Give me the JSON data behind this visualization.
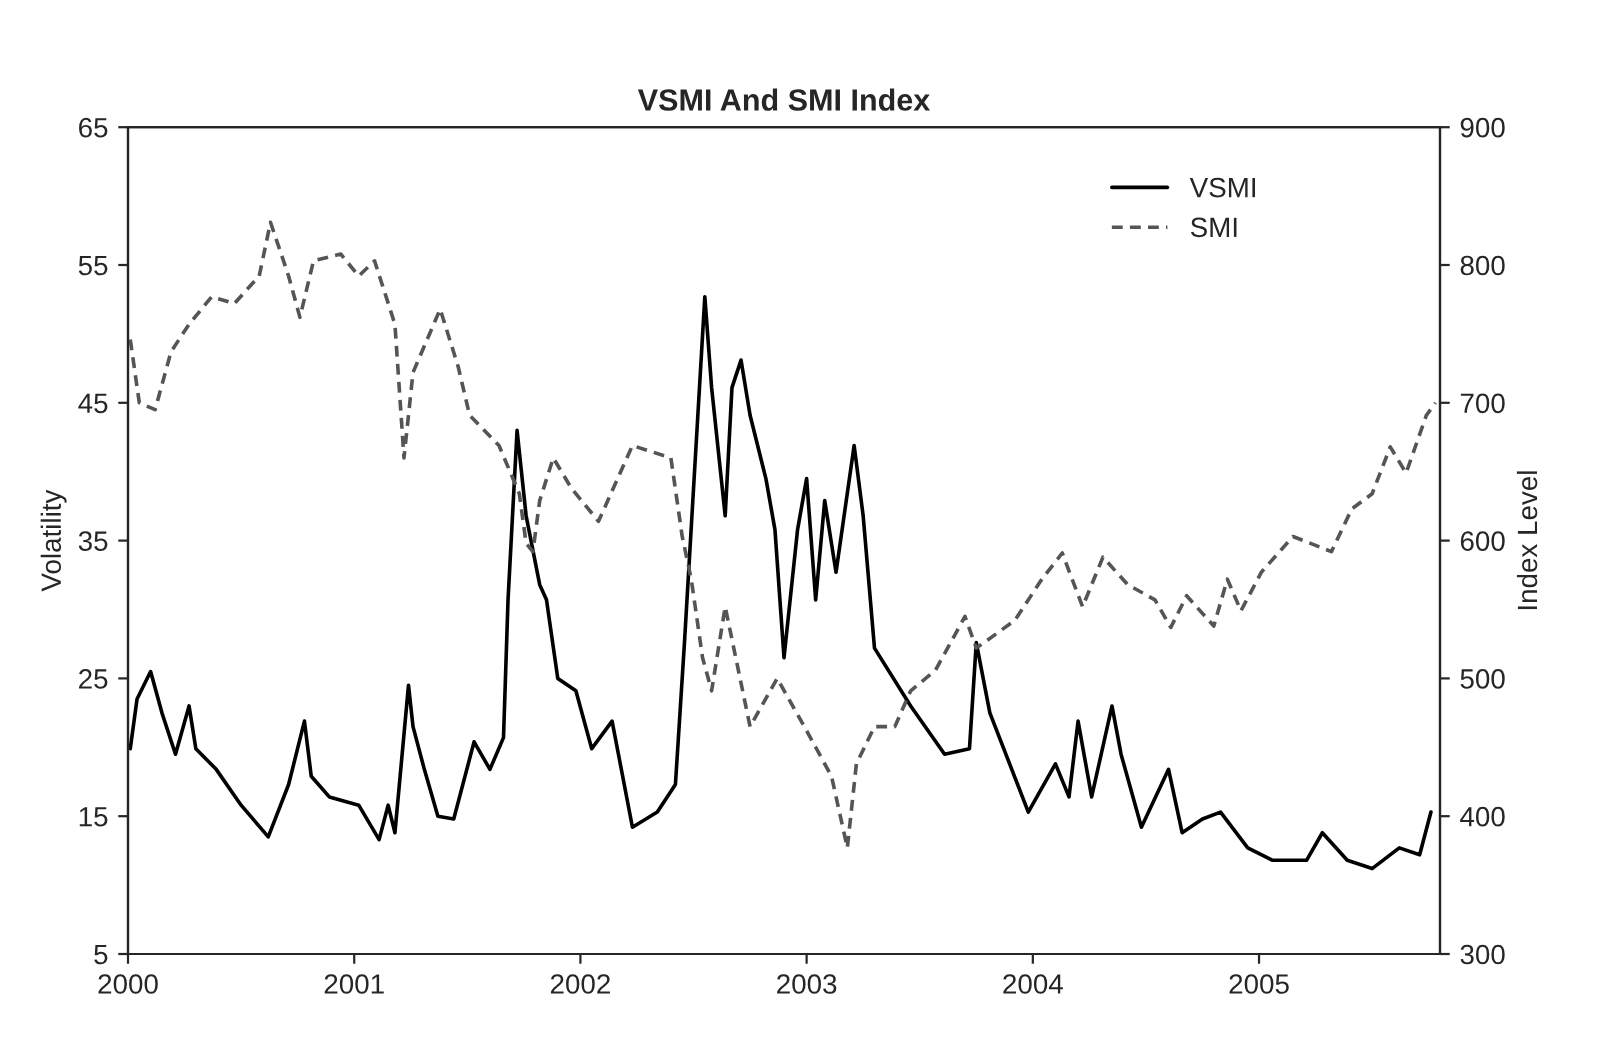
{
  "chart_data": {
    "type": "line",
    "title": "VSMI And SMI Index",
    "ylabel": "Volatility",
    "y2label": "Index Level",
    "xlim": [
      2000,
      2005.8
    ],
    "xticks": [
      2000,
      2001,
      2002,
      2003,
      2004,
      2005
    ],
    "ylim": [
      5,
      65
    ],
    "yticks": [
      5,
      15,
      25,
      35,
      45,
      55,
      65
    ],
    "y2lim": [
      300,
      900
    ],
    "y2ticks": [
      300,
      400,
      500,
      600,
      700,
      800,
      900
    ],
    "grid": false,
    "legend": "top right",
    "series": [
      {
        "name": "VSMI",
        "color": "#000000",
        "line_style": "solid",
        "x": [
          2000.01,
          2000.04,
          2000.1,
          2000.15,
          2000.21,
          2000.27,
          2000.3,
          2000.39,
          2000.5,
          2000.62,
          2000.71,
          2000.78,
          2000.81,
          2000.89,
          2001.02,
          2001.11,
          2001.15,
          2001.18,
          2001.24,
          2001.26,
          2001.31,
          2001.37,
          2001.44,
          2001.53,
          2001.6,
          2001.66,
          2001.68,
          2001.72,
          2001.76,
          2001.82,
          2001.85,
          2001.9,
          2001.98,
          2002.05,
          2002.14,
          2002.23,
          2002.34,
          2002.42,
          2002.46,
          2002.55,
          2002.58,
          2002.64,
          2002.67,
          2002.71,
          2002.75,
          2002.82,
          2002.86,
          2002.9,
          2002.96,
          2003.0,
          2003.04,
          2003.08,
          2003.13,
          2003.21,
          2003.25,
          2003.3,
          2003.46,
          2003.61,
          2003.72,
          2003.75,
          2003.81,
          2003.98,
          2004.1,
          2004.16,
          2004.2,
          2004.26,
          2004.35,
          2004.39,
          2004.48,
          2004.6,
          2004.66,
          2004.75,
          2004.83,
          2004.95,
          2005.06,
          2005.21,
          2005.28,
          2005.39,
          2005.5,
          2005.62,
          2005.71,
          2005.76
        ],
        "values": [
          19.9,
          23.5,
          25.5,
          22.5,
          19.5,
          23,
          19.9,
          18.4,
          15.8,
          13.5,
          17.3,
          21.9,
          17.9,
          16.4,
          15.8,
          13.3,
          15.8,
          13.8,
          24.5,
          21.5,
          18.4,
          15,
          14.8,
          20.4,
          18.4,
          20.7,
          30.7,
          43,
          36.8,
          31.8,
          30.7,
          25,
          24.1,
          19.9,
          21.9,
          14.2,
          15.3,
          17.3,
          27.6,
          52.7,
          46.1,
          36.8,
          46.1,
          48.1,
          44.1,
          39.5,
          35.8,
          26.5,
          35.8,
          39.5,
          30.7,
          37.9,
          32.7,
          41.9,
          36.8,
          27.2,
          23,
          19.5,
          19.9,
          27.6,
          22.5,
          15.3,
          18.8,
          16.4,
          21.9,
          16.4,
          23,
          19.5,
          14.2,
          18.4,
          13.8,
          14.8,
          15.3,
          12.7,
          11.8,
          11.8,
          13.8,
          11.8,
          11.2,
          12.7,
          12.2,
          15.3
        ]
      },
      {
        "name": "SMI",
        "color": "#555555",
        "line_style": "dashed",
        "axis": "y2",
        "x": [
          2000.01,
          2000.05,
          2000.12,
          2000.19,
          2000.27,
          2000.37,
          2000.47,
          2000.58,
          2000.63,
          2000.71,
          2000.76,
          2000.82,
          2000.94,
          2001.02,
          2001.09,
          2001.18,
          2001.22,
          2001.26,
          2001.38,
          2001.46,
          2001.51,
          2001.64,
          2001.73,
          2001.76,
          2001.79,
          2001.82,
          2001.88,
          2001.96,
          2002.08,
          2002.23,
          2002.4,
          2002.45,
          2002.49,
          2002.54,
          2002.58,
          2002.64,
          2002.75,
          2002.87,
          2002.99,
          2003.11,
          2003.18,
          2003.22,
          2003.3,
          2003.39,
          2003.46,
          2003.57,
          2003.7,
          2003.75,
          2003.92,
          2004.04,
          2004.13,
          2004.22,
          2004.31,
          2004.42,
          2004.54,
          2004.61,
          2004.68,
          2004.8,
          2004.86,
          2004.92,
          2005.01,
          2005.15,
          2005.32,
          2005.41,
          2005.5,
          2005.58,
          2005.65,
          2005.74,
          2005.78
        ],
        "values": [
          746,
          700,
          695,
          737,
          757,
          777,
          772,
          792,
          831,
          792,
          762,
          803,
          808,
          792,
          803,
          757,
          660,
          722,
          768,
          726,
          691,
          669,
          634,
          598,
          592,
          629,
          660,
          638,
          614,
          669,
          660,
          603,
          572,
          515,
          491,
          552,
          465,
          500,
          465,
          429,
          377,
          438,
          465,
          465,
          491,
          506,
          545,
          522,
          542,
          572,
          591,
          552,
          588,
          568,
          557,
          537,
          560,
          538,
          572,
          549,
          577,
          603,
          592,
          623,
          634,
          668,
          649,
          691,
          700
        ]
      }
    ]
  }
}
